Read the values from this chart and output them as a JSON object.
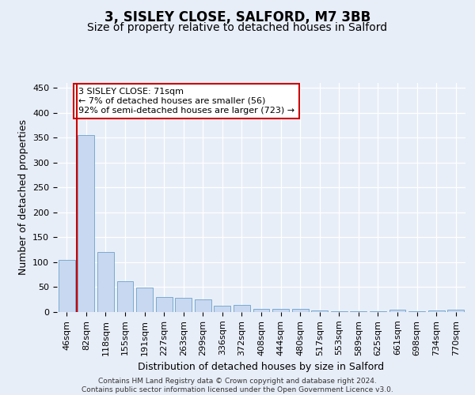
{
  "title1": "3, SISLEY CLOSE, SALFORD, M7 3BB",
  "title2": "Size of property relative to detached houses in Salford",
  "xlabel": "Distribution of detached houses by size in Salford",
  "ylabel": "Number of detached properties",
  "categories": [
    "46sqm",
    "82sqm",
    "118sqm",
    "155sqm",
    "191sqm",
    "227sqm",
    "263sqm",
    "299sqm",
    "336sqm",
    "372sqm",
    "408sqm",
    "444sqm",
    "480sqm",
    "517sqm",
    "553sqm",
    "589sqm",
    "625sqm",
    "661sqm",
    "698sqm",
    "734sqm",
    "770sqm"
  ],
  "values": [
    105,
    355,
    120,
    62,
    49,
    30,
    28,
    25,
    12,
    15,
    7,
    6,
    7,
    3,
    2,
    1,
    1,
    4,
    1,
    3,
    4
  ],
  "bar_color": "#c8d8f0",
  "bar_edgecolor": "#7aaad0",
  "vline_color": "#cc0000",
  "annotation_text": "3 SISLEY CLOSE: 71sqm\n← 7% of detached houses are smaller (56)\n92% of semi-detached houses are larger (723) →",
  "annotation_box_color": "#ffffff",
  "annotation_box_edgecolor": "#cc0000",
  "background_color": "#e8eef8",
  "plot_bg_color": "#e8eef8",
  "ylim": [
    0,
    460
  ],
  "yticks": [
    0,
    50,
    100,
    150,
    200,
    250,
    300,
    350,
    400,
    450
  ],
  "footer": "Contains HM Land Registry data © Crown copyright and database right 2024.\nContains public sector information licensed under the Open Government Licence v3.0.",
  "title1_fontsize": 12,
  "title2_fontsize": 10,
  "ylabel_fontsize": 9,
  "xlabel_fontsize": 9,
  "tick_fontsize": 8,
  "footer_fontsize": 6.5
}
